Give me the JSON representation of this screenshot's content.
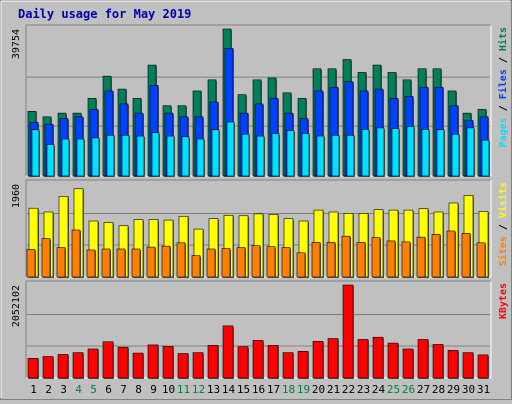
{
  "colors": {
    "background": "#c0c0c0",
    "plot": "#c0c0c0",
    "title": "#0000b0",
    "hits": "#00805a",
    "files": "#0040ff",
    "pages": "#00e0ff",
    "visits": "#ffff00",
    "sites": "#ff8000",
    "kbytes": "#ff0000",
    "weekend_label": "#008040",
    "weekday_label": "#000000"
  },
  "chart_data": {
    "type": "bar",
    "title": "Daily usage for May 2019",
    "x": [
      "1",
      "2",
      "3",
      "4",
      "5",
      "6",
      "7",
      "8",
      "9",
      "10",
      "11",
      "12",
      "13",
      "14",
      "15",
      "16",
      "17",
      "18",
      "19",
      "20",
      "21",
      "22",
      "23",
      "24",
      "25",
      "26",
      "27",
      "28",
      "29",
      "30",
      "31"
    ],
    "weekend_days": [
      "4",
      "5",
      "11",
      "12",
      "18",
      "19",
      "25",
      "26"
    ],
    "panels": [
      {
        "name": "hits-files-pages",
        "ymax_label": "39754",
        "ymax": 39754,
        "right_label": {
          "parts": [
            "Pages",
            "Files",
            "Hits"
          ],
          "separator": " / "
        },
        "series": [
          {
            "name": "Hits",
            "color": "#00805a",
            "values": [
              17500,
              16000,
              17000,
              17000,
              21000,
              27000,
              23500,
              21000,
              30000,
              19000,
              19000,
              23000,
              26000,
              39754,
              22000,
              26000,
              26500,
              22500,
              21000,
              29000,
              29000,
              31500,
              28000,
              30000,
              28000,
              26000,
              29000,
              29000,
              23000,
              17000,
              18000
            ]
          },
          {
            "name": "Files",
            "color": "#0040ff",
            "values": [
              14500,
              14000,
              15500,
              16000,
              18000,
              23000,
              19500,
              17000,
              24500,
              17000,
              16000,
              16000,
              20000,
              34500,
              17000,
              19500,
              21000,
              17000,
              15500,
              23000,
              24000,
              25500,
              23000,
              23500,
              21000,
              21500,
              24000,
              24000,
              19000,
              15000,
              16000
            ]
          },
          {
            "name": "Pages",
            "color": "#00e0ff",
            "values": [
              12500,
              8500,
              10000,
              10000,
              10300,
              11000,
              11000,
              10800,
              11700,
              10800,
              10600,
              10000,
              12500,
              14600,
              11300,
              10800,
              11500,
              12300,
              11500,
              10800,
              11000,
              11000,
              12600,
              13000,
              12800,
              13400,
              12600,
              12500,
              11300,
              13000,
              9700
            ]
          }
        ]
      },
      {
        "name": "visits-sites",
        "ymax_label": "1960",
        "ymax": 1960,
        "right_label": {
          "parts": [
            "Sites",
            "Visits"
          ],
          "separator": " / "
        },
        "series": [
          {
            "name": "Visits",
            "color": "#ffff00",
            "values": [
              1450,
              1370,
              1700,
              1860,
              1180,
              1150,
              1080,
              1210,
              1210,
              1200,
              1280,
              1010,
              1230,
              1300,
              1290,
              1330,
              1320,
              1230,
              1180,
              1410,
              1370,
              1340,
              1340,
              1420,
              1410,
              1410,
              1440,
              1370,
              1560,
              1720,
              1380
            ]
          },
          {
            "name": "Sites",
            "color": "#ff8000",
            "values": [
              580,
              810,
              620,
              990,
              570,
              590,
              590,
              590,
              630,
              650,
              720,
              450,
              590,
              600,
              620,
              660,
              640,
              620,
              510,
              730,
              730,
              860,
              730,
              830,
              760,
              740,
              840,
              900,
              970,
              920,
              720
            ]
          }
        ]
      },
      {
        "name": "kbytes",
        "ymax_label": "2052102",
        "ymax": 2052102,
        "right_label": {
          "parts": [
            "KBytes"
          ],
          "separator": ""
        },
        "series": [
          {
            "name": "KBytes",
            "color": "#ff0000",
            "values": [
              434000,
              474000,
              520000,
              560000,
              640000,
              800000,
              680000,
              550000,
              730000,
              700000,
              540000,
              560000,
              720000,
              1150000,
              690000,
              830000,
              720000,
              560000,
              590000,
              810000,
              870000,
              2052102,
              850000,
              900000,
              770000,
              640000,
              850000,
              740000,
              610000,
              560000,
              510000
            ]
          }
        ]
      }
    ]
  }
}
